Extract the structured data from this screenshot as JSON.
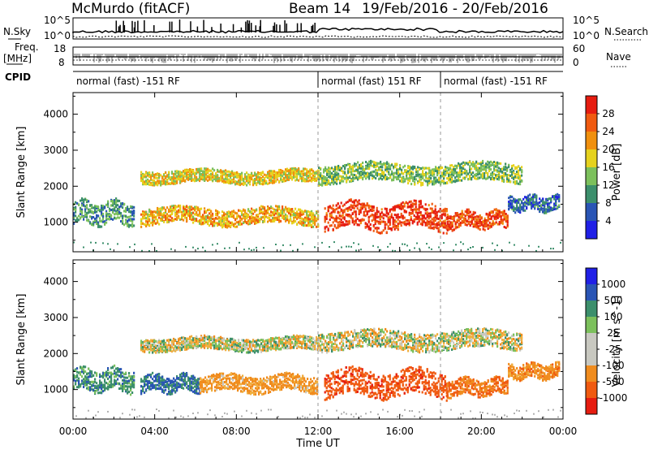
{
  "header": {
    "station": "McMurdo (fitACF)",
    "beam": "Beam 14",
    "date_range": "19/Feb/2016 - 20/Feb/2016"
  },
  "aux_panels": {
    "nsky_label": "N.Sky",
    "nsearch_label": "N.Search",
    "nsky_ticks": [
      "10^5",
      "10^0"
    ],
    "nsearch_ticks": [
      "10^5",
      "10^0"
    ],
    "freq_label_1": "Freq.",
    "freq_label_2": "[MHz]",
    "freq_ticks": [
      "18",
      "8"
    ],
    "nave_label": "Nave",
    "nave_ticks": [
      "60",
      "0"
    ],
    "cpid_label": "CPID",
    "cpid_segments": [
      {
        "label": "normal (fast) -151 RF",
        "start_h": 0,
        "end_h": 12
      },
      {
        "label": "normal (fast) 151 RF",
        "start_h": 12,
        "end_h": 18
      },
      {
        "label": "normal (fast) -151 RF",
        "start_h": 18,
        "end_h": 24
      }
    ]
  },
  "colors": {
    "power_scale": [
      "#2020e6",
      "#2a55b5",
      "#3c8f6c",
      "#7cc05c",
      "#e6d21e",
      "#f0900e",
      "#f05a10",
      "#e61c10"
    ],
    "velocity_scale": [
      "#e61c10",
      "#f05a10",
      "#f08c1e",
      "#c8c8c0",
      "#c8c8c0",
      "#7cc05c",
      "#3c8f6c",
      "#2a55b5",
      "#2020e6"
    ],
    "ground_scatter": "#b0b0b0"
  },
  "chart_data": [
    {
      "type": "heatmap",
      "title": "Power",
      "xlabel": "Time UT",
      "ylabel": "Slant Range [km]",
      "xlim_hours": [
        0,
        24
      ],
      "ylim": [
        180,
        4600
      ],
      "x_ticks": [
        "00:00",
        "04:00",
        "08:00",
        "12:00",
        "16:00",
        "20:00",
        "00:00"
      ],
      "y_ticks": [
        1000,
        2000,
        3000,
        4000
      ],
      "colorbar_label": "Power [dB]",
      "colorbar_ticks": [
        "4",
        "8",
        "12",
        "16",
        "20",
        "24",
        "28"
      ],
      "colorbar_range": [
        0,
        30
      ],
      "scatter_bands": [
        {
          "t_start": 0.0,
          "t_end": 3.0,
          "range_center": 1250,
          "range_width": 600,
          "level": 10
        },
        {
          "t_start": 3.3,
          "t_end": 12.0,
          "range_center": 1150,
          "range_width": 450,
          "level": 19
        },
        {
          "t_start": 3.3,
          "t_end": 12.0,
          "range_center": 2250,
          "range_width": 350,
          "level": 17
        },
        {
          "t_start": 12.3,
          "t_end": 18.3,
          "range_center": 1150,
          "range_width": 700,
          "level": 27
        },
        {
          "t_start": 12.0,
          "t_end": 22.0,
          "range_center": 2350,
          "range_width": 500,
          "level": 13
        },
        {
          "t_start": 18.3,
          "t_end": 21.3,
          "range_center": 1050,
          "range_width": 450,
          "level": 26
        },
        {
          "t_start": 21.3,
          "t_end": 23.8,
          "range_center": 1500,
          "range_width": 400,
          "level": 7
        }
      ]
    },
    {
      "type": "heatmap",
      "title": "Velocity",
      "xlabel": "Time UT",
      "ylabel": "Slant Range [km]",
      "xlim_hours": [
        0,
        24
      ],
      "ylim": [
        180,
        4600
      ],
      "x_ticks": [
        "00:00",
        "04:00",
        "08:00",
        "12:00",
        "16:00",
        "20:00",
        "00:00"
      ],
      "y_ticks": [
        1000,
        2000,
        3000,
        4000
      ],
      "colorbar_label": "Velocity [m s^-1]",
      "colorbar_ticks": [
        "1000",
        "500",
        "100",
        "25",
        "-25",
        "-100",
        "-500",
        "-1000"
      ],
      "scatter_bands": [
        {
          "t_start": 0.0,
          "t_end": 3.0,
          "range_center": 1250,
          "range_width": 600,
          "level": 200
        },
        {
          "t_start": 3.3,
          "t_end": 6.2,
          "range_center": 1150,
          "range_width": 450,
          "level": 300
        },
        {
          "t_start": 6.2,
          "t_end": 12.0,
          "range_center": 1150,
          "range_width": 450,
          "level": -150
        },
        {
          "t_start": 3.3,
          "t_end": 12.0,
          "range_center": 2250,
          "range_width": 350,
          "level": 0
        },
        {
          "t_start": 12.3,
          "t_end": 18.3,
          "range_center": 1150,
          "range_width": 700,
          "level": -500
        },
        {
          "t_start": 12.0,
          "t_end": 22.0,
          "range_center": 2350,
          "range_width": 500,
          "level": 0
        },
        {
          "t_start": 18.3,
          "t_end": 21.3,
          "range_center": 1050,
          "range_width": 450,
          "level": -300
        },
        {
          "t_start": 21.3,
          "t_end": 23.8,
          "range_center": 1500,
          "range_width": 400,
          "level": -200
        }
      ]
    }
  ]
}
